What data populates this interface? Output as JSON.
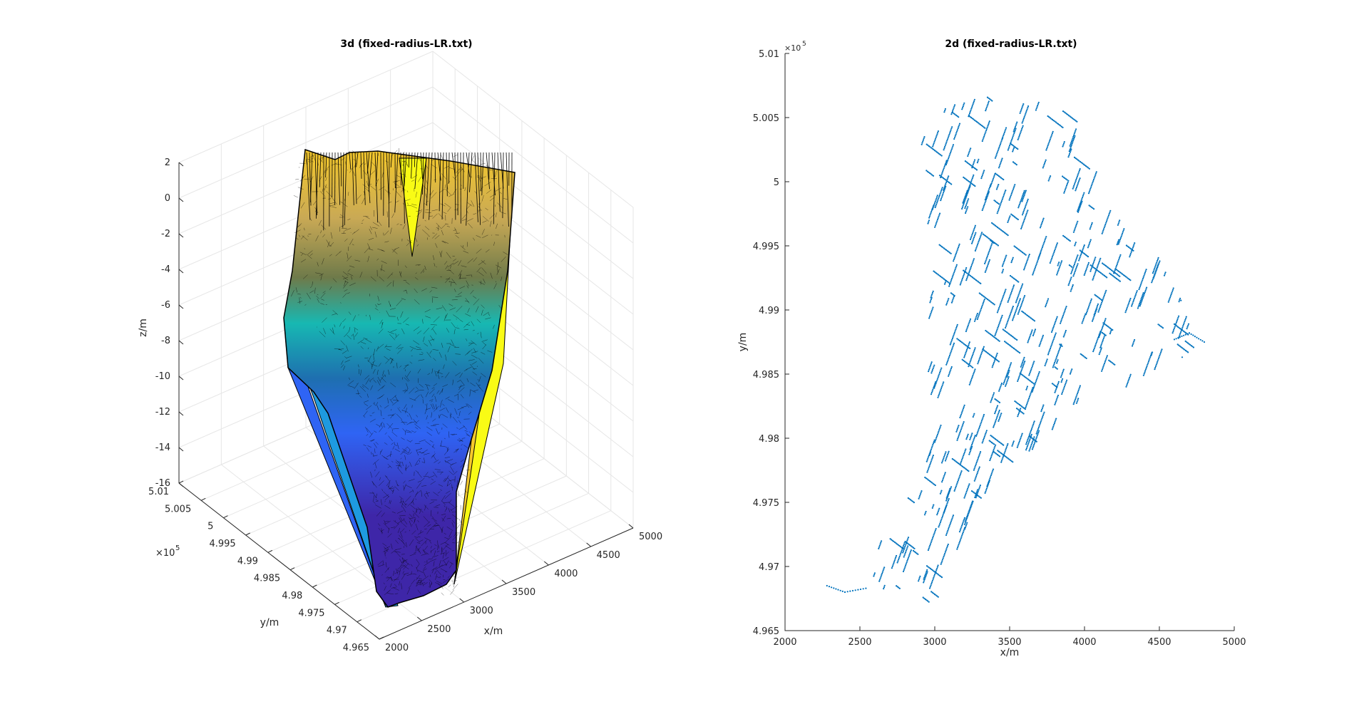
{
  "chart_data": [
    {
      "type": "surface",
      "title": "3d (fixed-radius-LR.txt)",
      "xlabel": "x/m",
      "ylabel": "y/m",
      "zlabel": "z/m",
      "xlim": [
        2000,
        5000
      ],
      "ylim": [
        496500,
        501000
      ],
      "zlim": [
        -16,
        2
      ],
      "x_ticks": [
        "2000",
        "2500",
        "3000",
        "3500",
        "4000",
        "4500",
        "5000"
      ],
      "y_ticks": [
        "4.965",
        "4.97",
        "4.975",
        "4.98",
        "4.985",
        "4.99",
        "4.995",
        "5",
        "5.005",
        "5.01"
      ],
      "z_ticks": [
        "-16",
        "-14",
        "-12",
        "-10",
        "-8",
        "-6",
        "-4",
        "-2",
        "0",
        "2"
      ],
      "y_exponent": "×10",
      "y_exponent_power": "5",
      "colormap": [
        "#3e26a8",
        "#2f64f4",
        "#1e9ae0",
        "#17b8b2",
        "#4cc77e",
        "#b3c432",
        "#f5c92b",
        "#f9fb15"
      ],
      "mesh_color": "#000000"
    },
    {
      "type": "scatter",
      "title": "2d (fixed-radius-LR.txt)",
      "xlabel": "x/m",
      "ylabel": "y/m",
      "xlim": [
        2000,
        5000
      ],
      "ylim": [
        496500,
        501000
      ],
      "x_ticks": [
        "2000",
        "2500",
        "3000",
        "3500",
        "4000",
        "4500",
        "5000"
      ],
      "y_ticks": [
        "4.965",
        "4.97",
        "4.975",
        "4.98",
        "4.985",
        "4.99",
        "4.995",
        "5",
        "5.005",
        "5.01"
      ],
      "y_exponent": "×10",
      "y_exponent_power": "5",
      "marker_color": "#0072bd",
      "outline": [
        [
          3400,
          500700
        ],
        [
          3800,
          500600
        ],
        [
          3950,
          500500
        ],
        [
          4050,
          500200
        ],
        [
          4150,
          499800
        ],
        [
          4500,
          499400
        ],
        [
          4800,
          498750
        ],
        [
          4450,
          498450
        ],
        [
          3950,
          498200
        ],
        [
          3500,
          497700
        ],
        [
          3000,
          496700
        ],
        [
          2600,
          496750
        ],
        [
          2500,
          497000
        ],
        [
          2700,
          497300
        ],
        [
          2900,
          497700
        ],
        [
          3000,
          498000
        ],
        [
          2950,
          498500
        ],
        [
          2950,
          499000
        ],
        [
          2950,
          499500
        ],
        [
          2950,
          500000
        ],
        [
          2900,
          500300
        ],
        [
          2950,
          500550
        ],
        [
          3000,
          500550
        ],
        [
          3400,
          500700
        ]
      ],
      "tails": [
        [
          [
            2280,
            496850
          ],
          [
            2400,
            496800
          ],
          [
            2540,
            496830
          ]
        ],
        [
          [
            4600,
            498770
          ],
          [
            4700,
            498820
          ],
          [
            4800,
            498750
          ]
        ]
      ]
    }
  ]
}
